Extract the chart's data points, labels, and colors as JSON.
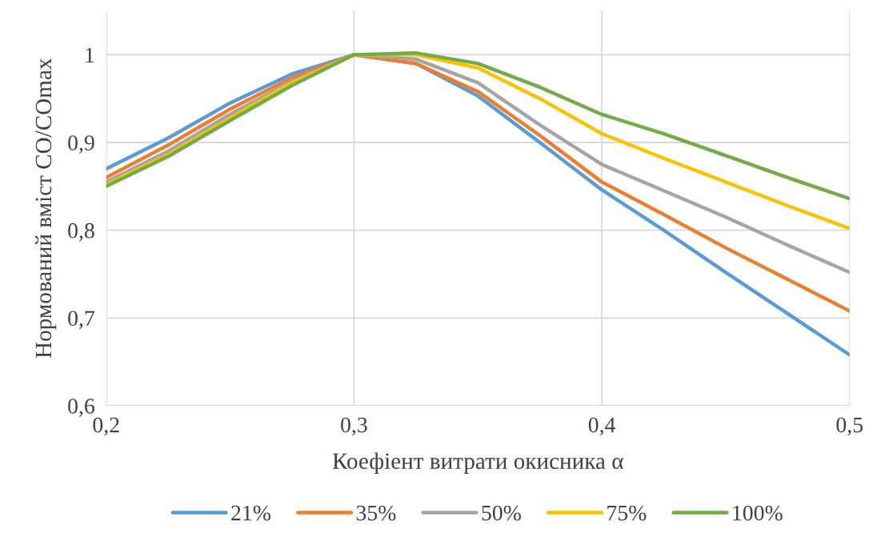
{
  "chart_data": {
    "type": "line",
    "xlabel": "Коефіент витрати окисника α",
    "ylabel": "Нормований вміст CO/COmax",
    "x": [
      0.2,
      0.225,
      0.25,
      0.275,
      0.3,
      0.325,
      0.35,
      0.375,
      0.4,
      0.425,
      0.45,
      0.475,
      0.5
    ],
    "series": [
      {
        "name": "21%",
        "color": "#5b9bd5",
        "values": [
          0.87,
          0.905,
          0.945,
          0.978,
          1.0,
          0.99,
          0.953,
          0.9,
          0.846,
          0.8,
          0.752,
          0.705,
          0.658
        ]
      },
      {
        "name": "35%",
        "color": "#ed7d31",
        "values": [
          0.86,
          0.897,
          0.938,
          0.974,
          1.0,
          0.99,
          0.958,
          0.908,
          0.855,
          0.818,
          0.78,
          0.744,
          0.708
        ]
      },
      {
        "name": "50%",
        "color": "#a5a5a5",
        "values": [
          0.855,
          0.89,
          0.932,
          0.97,
          1.0,
          0.995,
          0.968,
          0.92,
          0.875,
          0.845,
          0.815,
          0.783,
          0.752
        ]
      },
      {
        "name": "75%",
        "color": "#ffc000",
        "values": [
          0.852,
          0.886,
          0.928,
          0.968,
          1.0,
          1.0,
          0.985,
          0.95,
          0.91,
          0.882,
          0.855,
          0.828,
          0.802
        ]
      },
      {
        "name": "100%",
        "color": "#70ad47",
        "values": [
          0.85,
          0.884,
          0.925,
          0.965,
          1.0,
          1.002,
          0.99,
          0.963,
          0.932,
          0.91,
          0.885,
          0.86,
          0.836
        ]
      }
    ],
    "xlim": [
      0.2,
      0.5
    ],
    "ylim": [
      0.6,
      1.05
    ],
    "xticks": [
      {
        "value": 0.2,
        "label": "0,2"
      },
      {
        "value": 0.3,
        "label": "0,3"
      },
      {
        "value": 0.4,
        "label": "0,4"
      },
      {
        "value": 0.5,
        "label": "0,5"
      }
    ],
    "yticks": [
      {
        "value": 0.6,
        "label": "0,6"
      },
      {
        "value": 0.7,
        "label": "0,7"
      },
      {
        "value": 0.8,
        "label": "0,8"
      },
      {
        "value": 0.9,
        "label": "0,9"
      },
      {
        "value": 1,
        "label": "1"
      }
    ],
    "grid": true,
    "legend": "bottom",
    "line_style": "solid",
    "marker": "none"
  }
}
